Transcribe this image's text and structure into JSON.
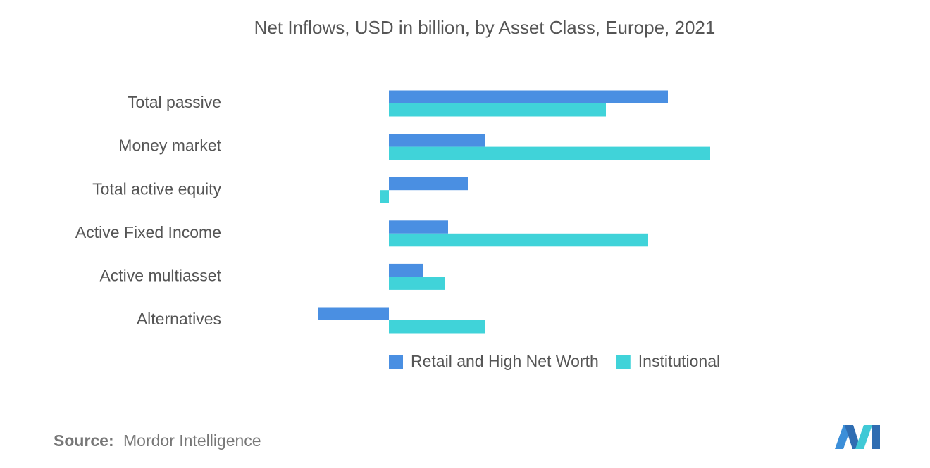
{
  "chart_data": {
    "type": "hbar",
    "title": "Net Inflows, USD in billion, by Asset Class, Europe, 2021",
    "categories": [
      "Total passive",
      "Money market",
      "Total active equity",
      "Active Fixed Income",
      "Active multiasset",
      "Alternatives"
    ],
    "series": [
      {
        "name": "Retail and High Net Worth",
        "color": "#4a8fe2",
        "values": [
          99,
          34,
          28,
          21,
          12,
          -25
        ]
      },
      {
        "name": "Institutional",
        "color": "#40d3d9",
        "values": [
          77,
          114,
          -3,
          92,
          20,
          34
        ]
      }
    ],
    "source_label": "Source:",
    "source": "Mordor Intelligence"
  }
}
